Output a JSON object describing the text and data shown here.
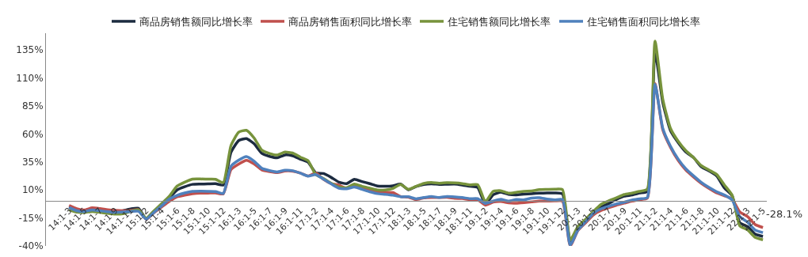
{
  "chart_data": {
    "type": "line",
    "categories": [
      "14:1-3",
      null,
      "14:1-5",
      null,
      "14:1-7",
      null,
      "14:1-9",
      null,
      "14:1-11",
      null,
      "15:1-2",
      null,
      "15:1-4",
      null,
      "15:1-6",
      null,
      "15:1-8",
      null,
      "15:1-10",
      null,
      "15:1-12",
      null,
      "16:1-3",
      null,
      "16:1-5",
      null,
      "16:1-7",
      null,
      "16:1-9",
      null,
      "16:1-11",
      null,
      "17:1-2",
      null,
      "17:1-4",
      null,
      "17:1-6",
      null,
      "17:1-8",
      null,
      "17:1-10",
      null,
      "17:1-12",
      null,
      "18:1-3",
      null,
      "18:1-5",
      null,
      "18:1-7",
      null,
      "18:1-9",
      null,
      "18:1-11",
      null,
      "19:1-2",
      null,
      "19:1-4",
      null,
      "19:1-6",
      null,
      "19:1-8",
      null,
      "19:1-10",
      null,
      "19:1-12",
      null,
      "20:1-3",
      null,
      "20:1-5",
      null,
      "20:1-7",
      null,
      "20:1-9",
      null,
      "20:1-11",
      null,
      "21:1-2",
      null,
      "21:1-4",
      null,
      "21:1-6",
      null,
      "21:1-8",
      null,
      "21:1-10",
      null,
      "21:1-12",
      null,
      "22:1-3",
      null,
      "22:1-5"
    ],
    "series": [
      {
        "name": "商品房销售额同比增长率",
        "color": "#1c2b40",
        "values": [
          -5.2,
          -7.8,
          -8.5,
          -6.7,
          -7.6,
          -8.1,
          -8.9,
          -8.5,
          -6.9,
          -6.3,
          -15.8,
          -9.3,
          -3.1,
          3.0,
          10.0,
          12.9,
          15.0,
          15.3,
          15.4,
          15.6,
          14.4,
          43.6,
          54.1,
          55.9,
          51.3,
          42.7,
          40.0,
          38.7,
          41.3,
          40.5,
          37.5,
          34.8,
          25.3,
          24.7,
          21.2,
          17.0,
          15.6,
          19.5,
          17.5,
          15.6,
          13.5,
          13.3,
          13.7,
          15.3,
          10.2,
          13.0,
          14.9,
          15.5,
          14.9,
          15.1,
          15.2,
          14.4,
          13.3,
          12.2,
          -2.8,
          5.6,
          8.1,
          6.1,
          5.6,
          6.2,
          6.7,
          7.1,
          7.3,
          7.3,
          6.5,
          -35.9,
          -24.7,
          -18.6,
          -11.7,
          -5.4,
          -2.1,
          1.6,
          4.4,
          5.5,
          7.2,
          8.7,
          133.4,
          88.5,
          63.1,
          52.4,
          43.9,
          38.9,
          30.7,
          27.0,
          22.5,
          11.8,
          4.8,
          -19.3,
          -22.7,
          -29.5,
          -31.5
        ]
      },
      {
        "name": "商品房销售面积同比增长率",
        "color": "#c0504d",
        "values": [
          -3.8,
          -6.7,
          -7.8,
          -6.0,
          -6.6,
          -7.6,
          -8.3,
          -8.6,
          -8.2,
          -7.6,
          -16.3,
          -10.4,
          -5.3,
          -0.2,
          3.9,
          5.4,
          6.6,
          7.2,
          7.2,
          7.4,
          6.5,
          28.2,
          33.1,
          36.5,
          33.2,
          27.9,
          26.4,
          25.5,
          26.9,
          26.8,
          25.1,
          22.5,
          25.1,
          19.5,
          15.7,
          14.3,
          11.3,
          13.9,
          12.0,
          10.3,
          8.3,
          7.9,
          7.7,
          4.1,
          3.6,
          1.3,
          2.9,
          3.3,
          3.3,
          3.4,
          2.6,
          2.3,
          1.4,
          1.3,
          -3.6,
          -0.9,
          -0.3,
          -1.6,
          -1.8,
          -1.3,
          -0.6,
          0.1,
          0.1,
          0.2,
          -0.1,
          -39.9,
          -26.3,
          -19.3,
          -12.3,
          -8.4,
          -5.8,
          -3.6,
          -1.8,
          0.0,
          1.3,
          2.6,
          104.9,
          63.8,
          48.1,
          36.4,
          27.7,
          21.5,
          15.9,
          11.3,
          7.3,
          4.8,
          1.9,
          -9.6,
          -13.8,
          -20.9,
          -23.6
        ]
      },
      {
        "name": "住宅销售额同比增长率",
        "color": "#77933c",
        "values": [
          -7.7,
          -9.9,
          -10.1,
          -9.2,
          -10.0,
          -10.9,
          -11.6,
          -11.2,
          -9.0,
          -7.8,
          -15.2,
          -8.7,
          -2.3,
          4.3,
          13.4,
          17.0,
          19.7,
          19.8,
          19.6,
          19.5,
          16.6,
          49.7,
          61.6,
          63.3,
          56.4,
          45.6,
          42.6,
          41.2,
          43.8,
          43.0,
          39.3,
          36.1,
          23.7,
          20.2,
          16.0,
          12.6,
          12.0,
          15.3,
          13.2,
          11.6,
          10.0,
          10.0,
          11.3,
          14.9,
          10.6,
          13.2,
          15.8,
          16.7,
          16.0,
          16.5,
          16.3,
          15.7,
          14.5,
          14.7,
          -0.6,
          8.8,
          9.3,
          7.1,
          7.9,
          8.8,
          9.1,
          10.3,
          10.5,
          10.7,
          10.3,
          -34.7,
          -22.6,
          -16.2,
          -9.2,
          -2.9,
          0.3,
          3.0,
          5.9,
          7.2,
          8.7,
          10.8,
          143.0,
          91.4,
          65.1,
          53.6,
          45.1,
          38.9,
          31.8,
          27.8,
          23.8,
          14.4,
          5.3,
          -22.1,
          -25.6,
          -32.4,
          -34.5
        ]
      },
      {
        "name": "住宅销售面积同比增长率",
        "color": "#4f81bd",
        "values": [
          -5.7,
          -8.6,
          -9.2,
          -7.8,
          -8.6,
          -9.4,
          -10.0,
          -9.7,
          -9.2,
          -9.1,
          -16.0,
          -10.1,
          -4.2,
          1.8,
          5.2,
          7.3,
          8.7,
          8.9,
          8.8,
          8.6,
          6.9,
          31.1,
          36.6,
          39.8,
          35.7,
          29.3,
          27.3,
          26.1,
          27.6,
          27.2,
          25.0,
          22.4,
          23.7,
          19.6,
          15.4,
          11.5,
          11.1,
          12.6,
          10.6,
          8.4,
          6.7,
          6.1,
          5.3,
          3.9,
          3.9,
          2.1,
          3.2,
          4.1,
          3.3,
          4.1,
          3.8,
          3.2,
          2.2,
          2.2,
          -2.0,
          0.1,
          1.6,
          0.0,
          1.5,
          1.2,
          2.8,
          3.1,
          1.8,
          1.2,
          1.5,
          -39.2,
          -25.9,
          -18.4,
          -10.9,
          -6.8,
          -4.6,
          -2.5,
          -1.0,
          1.0,
          2.1,
          3.2,
          104.5,
          65.3,
          49.2,
          37.6,
          28.9,
          22.6,
          16.8,
          12.2,
          8.4,
          5.5,
          1.1,
          -13.8,
          -18.8,
          -25.9,
          -28.1
        ]
      }
    ],
    "ylim": [
      -40,
      150
    ],
    "yticks": [
      {
        "value": -40,
        "label": "-40%"
      },
      {
        "value": -15,
        "label": "-15%"
      },
      {
        "value": 10,
        "label": "10%"
      },
      {
        "value": 35,
        "label": "35%"
      },
      {
        "value": 60,
        "label": "60%"
      },
      {
        "value": 85,
        "label": "85%"
      },
      {
        "value": 110,
        "label": "110%"
      },
      {
        "value": 135,
        "label": "135%"
      }
    ],
    "annotations": [
      {
        "text": "-28.1%",
        "x": "22:1-5",
        "y": -28.1
      }
    ],
    "grid": false,
    "legend": "top",
    "marker": "none",
    "line_style": "solid"
  }
}
